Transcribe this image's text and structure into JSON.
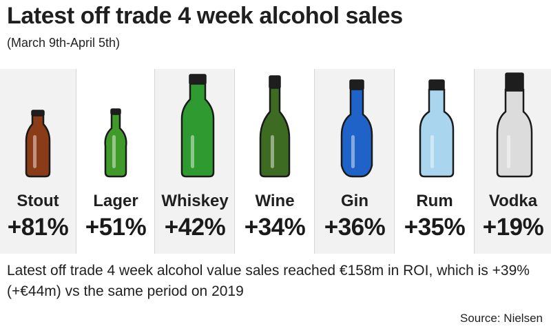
{
  "chart_data": {
    "type": "table",
    "title": "Latest off trade 4 week alcohol sales",
    "subtitle": "(March 9th-April 5th)",
    "categories": [
      "Stout",
      "Lager",
      "Whiskey",
      "Wine",
      "Gin",
      "Rum",
      "Vodka"
    ],
    "values": [
      81,
      51,
      42,
      34,
      36,
      35,
      19
    ],
    "value_labels": [
      "+81%",
      "+51%",
      "+42%",
      "+34%",
      "+36%",
      "+35%",
      "+19%"
    ],
    "icons": [
      "stout-bottle-icon",
      "lager-bottle-icon",
      "whiskey-bottle-icon",
      "wine-bottle-icon",
      "gin-bottle-icon",
      "rum-bottle-icon",
      "vodka-bottle-icon"
    ],
    "colors": {
      "Stout": "#8a3b17",
      "Lager": "#3f9a2a",
      "Whiskey": "#2f9a2f",
      "Wine": "#3d6b22",
      "Gin": "#1f63c8",
      "Rum": "#a9d6ee",
      "Vodka": "#dcdcdc"
    },
    "panel_background": "#f2f2f2"
  },
  "footnote": "Latest off trade 4 week alcohol value sales reached €158m in ROI, which is +39% (+€44m) vs the same period on 2019",
  "source": "Source: Nielsen"
}
